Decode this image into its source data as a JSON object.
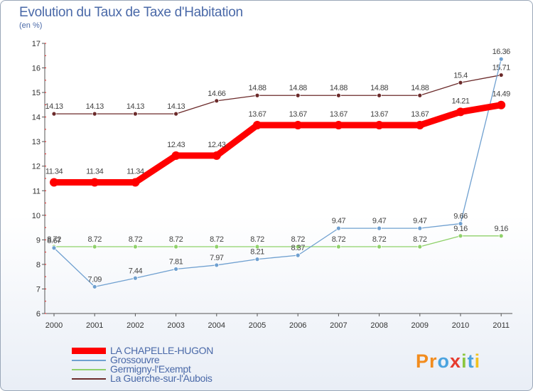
{
  "title": "Evolution du Taux de Taxe d'Habitation",
  "subtitle": "(en %)",
  "logo": {
    "text": "Proxiti",
    "letters": [
      {
        "ch": "P",
        "color": "#f28c1e"
      },
      {
        "ch": "r",
        "color": "#f28c1e"
      },
      {
        "ch": "o",
        "color": "#4aa3df"
      },
      {
        "ch": "x",
        "color": "#e63b2e"
      },
      {
        "ch": "i",
        "color": "#8cc63f"
      },
      {
        "ch": "t",
        "color": "#4aa3df"
      },
      {
        "ch": "i",
        "color": "#f2c21e"
      }
    ]
  },
  "chart_data": {
    "type": "line",
    "title": "Evolution du Taux de Taxe d'Habitation",
    "ylabel": "(en %)",
    "ylim": [
      6,
      17
    ],
    "yticks": [
      6,
      7,
      8,
      9,
      10,
      11,
      12,
      13,
      14,
      15,
      16,
      17
    ],
    "categories": [
      "2000",
      "2001",
      "2002",
      "2003",
      "2004",
      "2005",
      "2006",
      "2007",
      "2008",
      "2009",
      "2010",
      "2011"
    ],
    "series": [
      {
        "name": "La Guerche-sur-l'Aubois",
        "color": "#6b2a2a",
        "style": "thin",
        "values": [
          14.13,
          14.13,
          14.13,
          14.13,
          14.66,
          14.88,
          14.88,
          14.88,
          14.88,
          14.88,
          15.4,
          15.71
        ],
        "labels": [
          "14.13",
          "14.13",
          "14.13",
          "14.13",
          "14.66",
          "14.88",
          "14.88",
          "14.88",
          "14.88",
          "14.88",
          "15.4",
          "15.71"
        ]
      },
      {
        "name": "Germigny-l'Exempt",
        "color": "#8fd16a",
        "style": "thin",
        "values": [
          8.72,
          8.72,
          8.72,
          8.72,
          8.72,
          8.72,
          8.72,
          8.72,
          8.72,
          8.72,
          9.16,
          9.16
        ],
        "labels": [
          "8.72",
          "8.72",
          "8.72",
          "8.72",
          "8.72",
          "8.72",
          "8.72",
          "8.72",
          "8.72",
          "8.72",
          "9.16",
          "9.16"
        ]
      },
      {
        "name": "Grossouvre",
        "color": "#6fa0d0",
        "style": "thin",
        "values": [
          8.67,
          7.09,
          7.44,
          7.81,
          7.97,
          8.21,
          8.37,
          9.47,
          9.47,
          9.47,
          9.66,
          16.36
        ],
        "labels": [
          "8.67",
          "7.09",
          "7.44",
          "7.81",
          "7.97",
          "8.21",
          "8.37",
          "9.47",
          "9.47",
          "9.47",
          "9.66",
          "16.36"
        ]
      },
      {
        "name": "LA CHAPELLE-HUGON",
        "color": "#ff0000",
        "style": "thick",
        "values": [
          11.34,
          11.34,
          11.34,
          12.43,
          12.43,
          13.67,
          13.67,
          13.67,
          13.67,
          13.67,
          14.21,
          14.49
        ],
        "labels": [
          "11.34",
          "11.34",
          "11.34",
          "12.43",
          "12.43",
          "13.67",
          "13.67",
          "13.67",
          "13.67",
          "13.67",
          "14.21",
          "14.49"
        ]
      }
    ],
    "legend": [
      "LA CHAPELLE-HUGON",
      "Grossouvre",
      "Germigny-l'Exempt",
      "La Guerche-sur-l'Aubois"
    ],
    "legend_position": "bottom-left"
  }
}
